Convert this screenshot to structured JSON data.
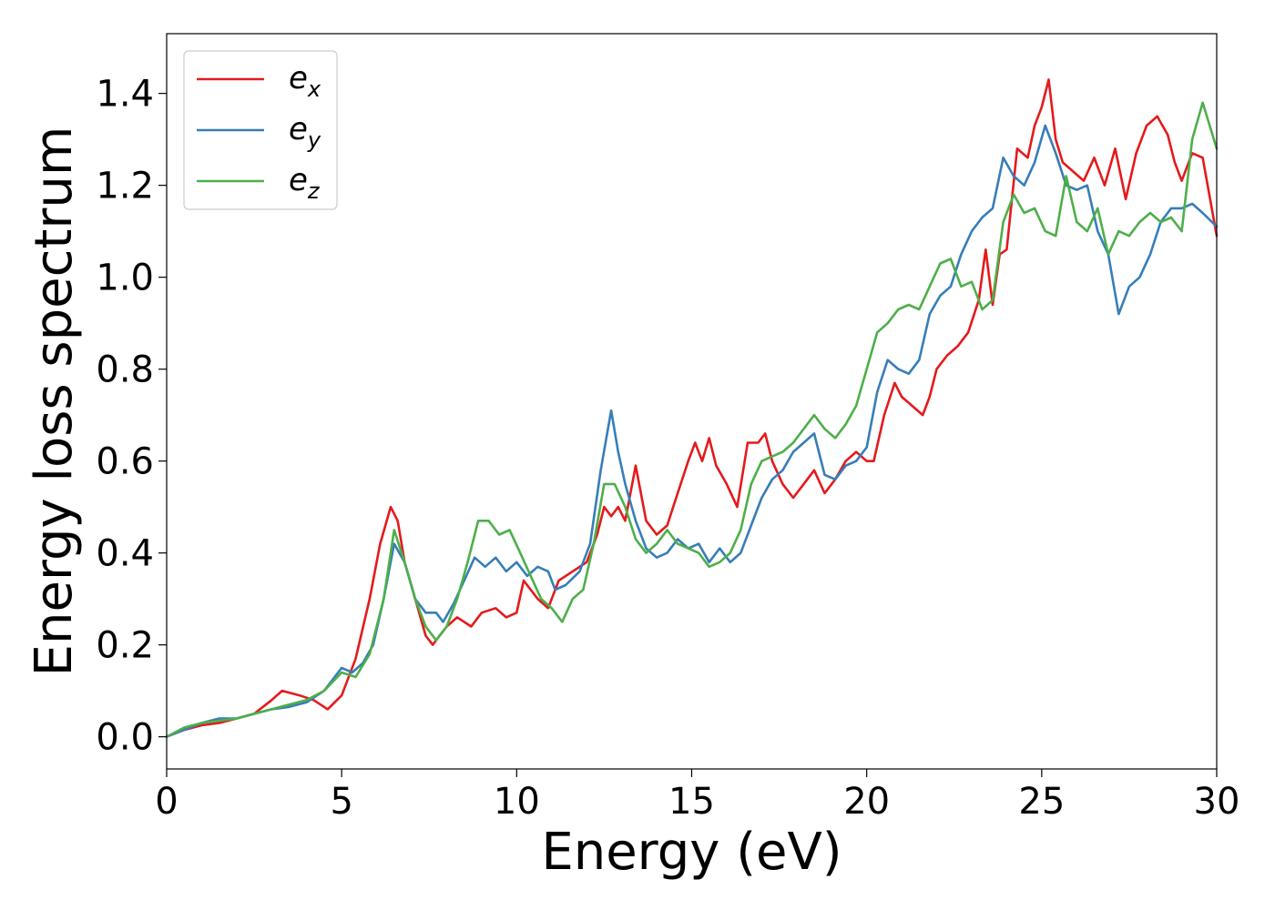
{
  "chart_data": {
    "type": "line",
    "xlabel": "Energy (eV)",
    "ylabel": "Energy loss spectrum",
    "xlim": [
      0,
      30
    ],
    "ylim": [
      -0.07,
      1.53
    ],
    "xticks": [
      0,
      5,
      10,
      15,
      20,
      25,
      30
    ],
    "yticks": [
      0.0,
      0.2,
      0.4,
      0.6,
      0.8,
      1.0,
      1.2,
      1.4
    ],
    "xtick_labels": [
      "0",
      "5",
      "10",
      "15",
      "20",
      "25",
      "30"
    ],
    "ytick_labels": [
      "0.0",
      "0.2",
      "0.4",
      "0.6",
      "0.8",
      "1.0",
      "1.2",
      "1.4"
    ],
    "grid": false,
    "legend_position": "top-left",
    "series": [
      {
        "name": "e_x",
        "label_base": "e",
        "label_sub": "x",
        "color": "#e41a1c",
        "x": [
          0,
          0.5,
          1,
          1.5,
          2,
          2.5,
          3,
          3.3,
          3.8,
          4.2,
          4.6,
          5,
          5.4,
          5.8,
          6.1,
          6.4,
          6.6,
          6.8,
          7.1,
          7.4,
          7.6,
          8,
          8.3,
          8.7,
          9,
          9.4,
          9.7,
          10,
          10.2,
          10.6,
          10.9,
          11.2,
          11.6,
          12,
          12.3,
          12.5,
          12.7,
          12.9,
          13.1,
          13.4,
          13.7,
          14,
          14.3,
          14.6,
          14.9,
          15.1,
          15.3,
          15.5,
          15.7,
          16,
          16.3,
          16.6,
          16.9,
          17.1,
          17.3,
          17.6,
          17.9,
          18.2,
          18.5,
          18.8,
          19.1,
          19.4,
          19.7,
          20,
          20.2,
          20.5,
          20.8,
          21,
          21.3,
          21.6,
          21.8,
          22,
          22.3,
          22.6,
          22.9,
          23.2,
          23.4,
          23.6,
          23.8,
          24,
          24.3,
          24.6,
          24.8,
          25,
          25.2,
          25.4,
          25.6,
          25.9,
          26.2,
          26.5,
          26.8,
          27.1,
          27.4,
          27.7,
          28,
          28.3,
          28.6,
          28.8,
          29,
          29.3,
          29.6,
          30
        ],
        "y": [
          0,
          0.015,
          0.025,
          0.03,
          0.04,
          0.05,
          0.08,
          0.1,
          0.09,
          0.08,
          0.06,
          0.09,
          0.17,
          0.3,
          0.42,
          0.5,
          0.47,
          0.38,
          0.3,
          0.22,
          0.2,
          0.24,
          0.26,
          0.24,
          0.27,
          0.28,
          0.26,
          0.27,
          0.34,
          0.3,
          0.28,
          0.34,
          0.36,
          0.38,
          0.44,
          0.5,
          0.48,
          0.5,
          0.47,
          0.59,
          0.47,
          0.44,
          0.46,
          0.53,
          0.6,
          0.64,
          0.6,
          0.65,
          0.59,
          0.55,
          0.5,
          0.64,
          0.64,
          0.66,
          0.6,
          0.55,
          0.52,
          0.55,
          0.58,
          0.53,
          0.56,
          0.6,
          0.62,
          0.6,
          0.6,
          0.7,
          0.77,
          0.74,
          0.72,
          0.7,
          0.74,
          0.8,
          0.83,
          0.85,
          0.88,
          0.95,
          1.06,
          0.94,
          1.05,
          1.06,
          1.28,
          1.26,
          1.33,
          1.37,
          1.43,
          1.3,
          1.25,
          1.23,
          1.21,
          1.26,
          1.2,
          1.28,
          1.17,
          1.27,
          1.33,
          1.35,
          1.31,
          1.25,
          1.21,
          1.27,
          1.26,
          1.09
        ]
      },
      {
        "name": "e_y",
        "label_base": "e",
        "label_sub": "y",
        "color": "#377eb8",
        "x": [
          0,
          0.5,
          1,
          1.5,
          2,
          2.5,
          3,
          3.5,
          4,
          4.5,
          5,
          5.3,
          5.6,
          5.9,
          6.2,
          6.5,
          6.8,
          7.1,
          7.4,
          7.7,
          7.9,
          8.2,
          8.5,
          8.8,
          9.1,
          9.4,
          9.7,
          10,
          10.3,
          10.6,
          10.9,
          11.1,
          11.4,
          11.8,
          12.1,
          12.4,
          12.7,
          12.9,
          13.1,
          13.4,
          13.7,
          14,
          14.3,
          14.6,
          14.9,
          15.2,
          15.5,
          15.8,
          16.1,
          16.4,
          16.7,
          17,
          17.3,
          17.6,
          17.9,
          18.2,
          18.5,
          18.8,
          19.1,
          19.4,
          19.7,
          20,
          20.3,
          20.6,
          20.9,
          21.2,
          21.5,
          21.8,
          22.1,
          22.4,
          22.7,
          23,
          23.3,
          23.6,
          23.9,
          24.2,
          24.5,
          24.8,
          25.1,
          25.4,
          25.7,
          26,
          26.3,
          26.6,
          26.9,
          27.2,
          27.5,
          27.8,
          28.1,
          28.4,
          28.7,
          29,
          29.3,
          29.6,
          30
        ],
        "y": [
          0,
          0.015,
          0.03,
          0.04,
          0.04,
          0.05,
          0.06,
          0.065,
          0.075,
          0.1,
          0.15,
          0.14,
          0.16,
          0.2,
          0.3,
          0.42,
          0.38,
          0.3,
          0.27,
          0.27,
          0.25,
          0.29,
          0.34,
          0.39,
          0.37,
          0.39,
          0.36,
          0.38,
          0.35,
          0.37,
          0.36,
          0.32,
          0.33,
          0.36,
          0.42,
          0.58,
          0.71,
          0.62,
          0.55,
          0.47,
          0.41,
          0.39,
          0.4,
          0.43,
          0.41,
          0.42,
          0.38,
          0.41,
          0.38,
          0.4,
          0.46,
          0.52,
          0.56,
          0.58,
          0.62,
          0.64,
          0.66,
          0.57,
          0.56,
          0.59,
          0.6,
          0.63,
          0.75,
          0.82,
          0.8,
          0.79,
          0.82,
          0.92,
          0.96,
          0.98,
          1.05,
          1.1,
          1.13,
          1.15,
          1.26,
          1.22,
          1.2,
          1.25,
          1.33,
          1.27,
          1.2,
          1.19,
          1.2,
          1.1,
          1.05,
          0.92,
          0.98,
          1.0,
          1.05,
          1.12,
          1.15,
          1.15,
          1.16,
          1.14,
          1.11
        ]
      },
      {
        "name": "e_z",
        "label_base": "e",
        "label_sub": "z",
        "color": "#4daf4a",
        "x": [
          0,
          0.5,
          1,
          1.5,
          2,
          2.5,
          3,
          3.5,
          4,
          4.5,
          5,
          5.4,
          5.8,
          6.2,
          6.5,
          6.8,
          7.1,
          7.4,
          7.7,
          8,
          8.3,
          8.6,
          8.9,
          9.2,
          9.5,
          9.8,
          10.1,
          10.4,
          10.7,
          11,
          11.3,
          11.6,
          11.9,
          12.2,
          12.5,
          12.8,
          13.1,
          13.4,
          13.7,
          14,
          14.3,
          14.6,
          14.9,
          15.2,
          15.5,
          15.8,
          16.1,
          16.4,
          16.7,
          17,
          17.3,
          17.6,
          17.9,
          18.2,
          18.5,
          18.8,
          19.1,
          19.4,
          19.7,
          20,
          20.3,
          20.6,
          20.9,
          21.2,
          21.5,
          21.8,
          22.1,
          22.4,
          22.7,
          23,
          23.3,
          23.6,
          23.9,
          24.2,
          24.5,
          24.8,
          25.1,
          25.4,
          25.7,
          26,
          26.3,
          26.6,
          26.9,
          27.2,
          27.5,
          27.8,
          28.1,
          28.4,
          28.7,
          29,
          29.3,
          29.6,
          30
        ],
        "y": [
          0,
          0.02,
          0.03,
          0.035,
          0.04,
          0.05,
          0.06,
          0.07,
          0.08,
          0.1,
          0.14,
          0.13,
          0.18,
          0.3,
          0.45,
          0.38,
          0.3,
          0.24,
          0.21,
          0.24,
          0.3,
          0.38,
          0.47,
          0.47,
          0.44,
          0.45,
          0.4,
          0.35,
          0.3,
          0.28,
          0.25,
          0.3,
          0.32,
          0.42,
          0.55,
          0.55,
          0.5,
          0.43,
          0.4,
          0.42,
          0.45,
          0.42,
          0.41,
          0.4,
          0.37,
          0.38,
          0.4,
          0.45,
          0.55,
          0.6,
          0.61,
          0.62,
          0.64,
          0.67,
          0.7,
          0.67,
          0.65,
          0.68,
          0.72,
          0.8,
          0.88,
          0.9,
          0.93,
          0.94,
          0.93,
          0.98,
          1.03,
          1.04,
          0.98,
          0.99,
          0.93,
          0.95,
          1.12,
          1.18,
          1.14,
          1.15,
          1.1,
          1.09,
          1.22,
          1.12,
          1.1,
          1.15,
          1.05,
          1.1,
          1.09,
          1.12,
          1.14,
          1.12,
          1.13,
          1.1,
          1.3,
          1.38,
          1.28
        ]
      }
    ]
  }
}
